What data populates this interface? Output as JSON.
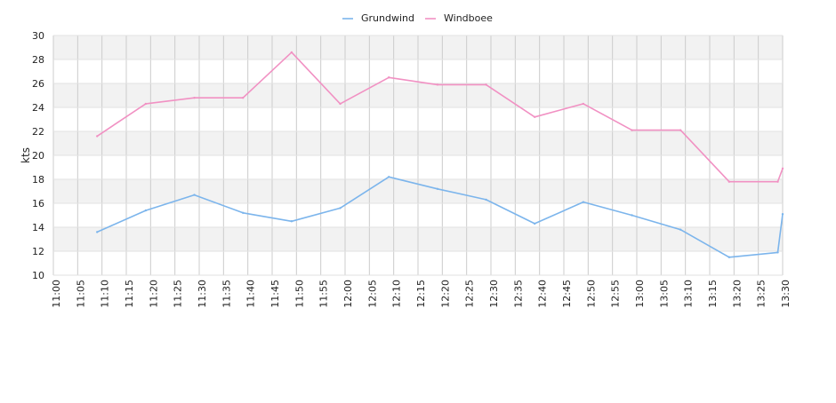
{
  "chart_data": {
    "type": "line",
    "title": "",
    "xlabel": "",
    "ylabel": "kts",
    "ylim": [
      10,
      30
    ],
    "yticks": [
      "10",
      "12",
      "14",
      "16",
      "18",
      "20",
      "22",
      "24",
      "26",
      "28",
      "30"
    ],
    "xlim": [
      "11:00",
      "13:30"
    ],
    "xticks": [
      "11:00",
      "11:05",
      "11:10",
      "11:15",
      "11:20",
      "11:25",
      "11:30",
      "11:35",
      "11:40",
      "11:45",
      "11:50",
      "11:55",
      "12:00",
      "12:05",
      "12:10",
      "12:15",
      "12:20",
      "12:25",
      "12:30",
      "12:35",
      "12:40",
      "12:45",
      "12:50",
      "12:55",
      "13:00",
      "13:05",
      "13:10",
      "13:15",
      "13:20",
      "13:25",
      "13:30"
    ],
    "grid": true,
    "legend_position": "top-center",
    "series": [
      {
        "name": "Grundwind",
        "color": "#7cb5ec",
        "points": [
          {
            "x": "11:09",
            "y": 13.6
          },
          {
            "x": "11:19",
            "y": 15.4
          },
          {
            "x": "11:29",
            "y": 16.7
          },
          {
            "x": "11:39",
            "y": 15.2
          },
          {
            "x": "11:49",
            "y": 14.5
          },
          {
            "x": "11:59",
            "y": 15.6
          },
          {
            "x": "12:09",
            "y": 18.2
          },
          {
            "x": "12:19",
            "y": 17.2
          },
          {
            "x": "12:29",
            "y": 16.3
          },
          {
            "x": "12:39",
            "y": 14.3
          },
          {
            "x": "12:49",
            "y": 16.1
          },
          {
            "x": "12:59",
            "y": 15.0
          },
          {
            "x": "13:09",
            "y": 13.8
          },
          {
            "x": "13:19",
            "y": 11.5
          },
          {
            "x": "13:29",
            "y": 11.9
          },
          {
            "x": "13:30",
            "y": 15.1
          }
        ]
      },
      {
        "name": "Windboee",
        "color": "#f191c3",
        "points": [
          {
            "x": "11:09",
            "y": 21.6
          },
          {
            "x": "11:19",
            "y": 24.3
          },
          {
            "x": "11:29",
            "y": 24.8
          },
          {
            "x": "11:39",
            "y": 24.8
          },
          {
            "x": "11:49",
            "y": 28.6
          },
          {
            "x": "11:59",
            "y": 24.3
          },
          {
            "x": "12:09",
            "y": 26.5
          },
          {
            "x": "12:19",
            "y": 25.9
          },
          {
            "x": "12:29",
            "y": 25.9
          },
          {
            "x": "12:39",
            "y": 23.2
          },
          {
            "x": "12:49",
            "y": 24.3
          },
          {
            "x": "12:59",
            "y": 22.1
          },
          {
            "x": "13:09",
            "y": 22.1
          },
          {
            "x": "13:19",
            "y": 17.8
          },
          {
            "x": "13:29",
            "y": 17.8
          },
          {
            "x": "13:30",
            "y": 18.9
          }
        ]
      }
    ]
  }
}
